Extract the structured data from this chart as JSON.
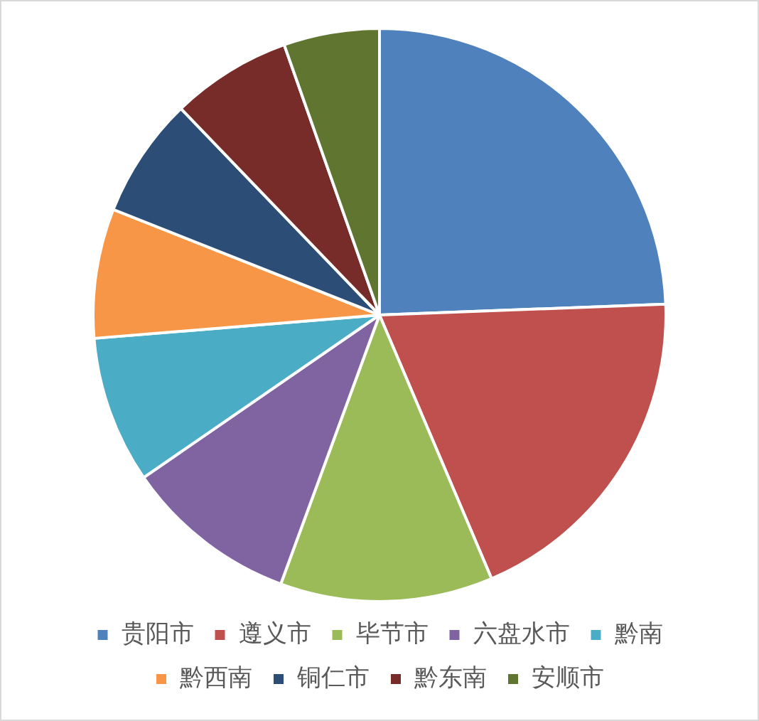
{
  "chart_data": {
    "type": "pie",
    "categories": [
      "贵阳市",
      "遵义市",
      "毕节市",
      "六盘水市",
      "黔南",
      "黔西南",
      "铜仁市",
      "黔东南",
      "安顺市"
    ],
    "values": [
      24.4,
      19.2,
      12.0,
      9.8,
      8.3,
      7.3,
      6.8,
      6.8,
      5.4
    ],
    "colors": [
      "#4f81bd",
      "#c0504d",
      "#9bbb59",
      "#8064a2",
      "#4bacc6",
      "#f79646",
      "#2c4d75",
      "#772c2a",
      "#5f7530"
    ],
    "legend": "bottom"
  }
}
